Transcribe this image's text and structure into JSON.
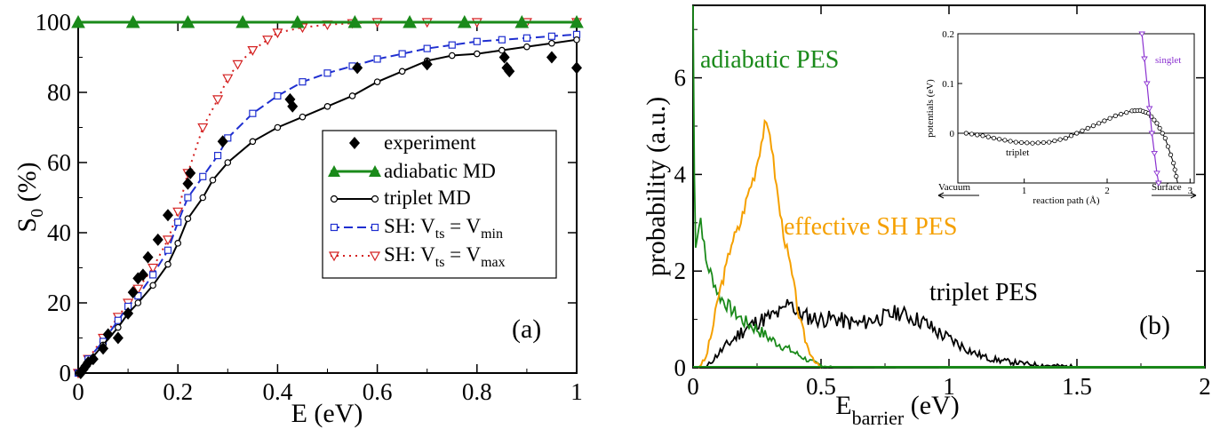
{
  "colors": {
    "experiment": "#000000",
    "adiabatic": "#1a8a1a",
    "triplet": "#000000",
    "sh_min": "#1f2fd0",
    "sh_max": "#d42020",
    "effective": "#f5a000",
    "singlet": "#8a30d0"
  },
  "panel_a": {
    "label": "(a)",
    "xlabel": "E (eV)",
    "ylabel_main": "S",
    "ylabel_sub": "0",
    "ylabel_tail": " (%)",
    "xticks": [
      "0",
      "0.2",
      "0.4",
      "0.6",
      "0.8",
      "1"
    ],
    "yticks": [
      "0",
      "20",
      "40",
      "60",
      "80",
      "100"
    ],
    "legend": {
      "experiment": "experiment",
      "adiabatic": "adiabatic MD",
      "triplet": "triplet MD",
      "sh_min": {
        "a": "SH: V",
        "b": "ts",
        "c": " = V",
        "d": "min"
      },
      "sh_max": {
        "a": "SH: V",
        "b": "ts",
        "c": " = V",
        "d": "max"
      }
    }
  },
  "panel_b": {
    "label": "(b)",
    "xlabel_main": "E",
    "xlabel_sub": "barrier",
    "xlabel_tail": " (eV)",
    "ylabel": "probability (a.u.)",
    "xticks": [
      "0",
      "0.5",
      "1",
      "1.5",
      "2"
    ],
    "yticks": [
      "0",
      "2",
      "4",
      "6"
    ],
    "annotations": {
      "adiabatic": "adiabatic PES",
      "effective": "effective SH PES",
      "triplet": "triplet PES"
    },
    "inset": {
      "ylabel": "potentials (eV)",
      "xlabel": "reaction path (Å)",
      "yticks": [
        "0",
        "0.1",
        "0.2"
      ],
      "xticks": [
        "1",
        "2",
        "3"
      ],
      "vacuum": "Vacuum",
      "surface": "Surface",
      "triplet_label": "triplet",
      "singlet_label": "singlet"
    }
  },
  "chart_data": [
    {
      "type": "scatter",
      "panel": "a",
      "xlabel": "E (eV)",
      "ylabel": "S0 (%)",
      "xlim": [
        0,
        1
      ],
      "ylim": [
        0,
        100
      ],
      "legend_position": "center-right",
      "series": [
        {
          "name": "experiment",
          "style": "diamond markers",
          "x": [
            0.005,
            0.01,
            0.015,
            0.02,
            0.03,
            0.05,
            0.06,
            0.08,
            0.1,
            0.11,
            0.12,
            0.13,
            0.14,
            0.16,
            0.18,
            0.22,
            0.225,
            0.29,
            0.425,
            0.43,
            0.56,
            0.7,
            0.855,
            0.86,
            0.865,
            0.95,
            1.0
          ],
          "y": [
            0,
            1,
            2,
            3,
            4,
            7,
            11,
            10,
            17,
            23,
            27,
            28,
            33,
            38,
            45,
            54,
            57,
            66,
            78,
            76,
            87,
            88,
            90,
            87,
            86,
            90,
            87
          ]
        },
        {
          "name": "adiabatic MD",
          "style": "line with triangle markers",
          "x": [
            0,
            0.11,
            0.22,
            0.33,
            0.44,
            0.555,
            0.665,
            0.775,
            0.89,
            1.0
          ],
          "y": [
            100,
            100,
            100,
            100,
            100,
            100,
            100,
            100,
            100,
            100
          ]
        },
        {
          "name": "triplet MD",
          "style": "line with circle markers",
          "x": [
            0,
            0.02,
            0.05,
            0.08,
            0.1,
            0.12,
            0.15,
            0.18,
            0.2,
            0.22,
            0.25,
            0.27,
            0.3,
            0.35,
            0.4,
            0.45,
            0.5,
            0.55,
            0.6,
            0.65,
            0.7,
            0.75,
            0.8,
            0.85,
            0.9,
            0.95,
            1.0
          ],
          "y": [
            0,
            3,
            8,
            13,
            17,
            20,
            25,
            31,
            37,
            44,
            50,
            55,
            60,
            66,
            70,
            73,
            76,
            79,
            83,
            86,
            89,
            90.5,
            91,
            92,
            93,
            94,
            95
          ]
        },
        {
          "name": "SH: V_ts = V_min",
          "style": "dashed line with square markers",
          "x": [
            0,
            0.02,
            0.05,
            0.08,
            0.1,
            0.12,
            0.15,
            0.18,
            0.2,
            0.22,
            0.25,
            0.28,
            0.3,
            0.35,
            0.4,
            0.45,
            0.5,
            0.55,
            0.6,
            0.65,
            0.7,
            0.75,
            0.8,
            0.85,
            0.9,
            0.95,
            1.0
          ],
          "y": [
            0,
            4,
            9,
            15,
            19,
            22,
            28,
            35,
            43,
            50,
            56,
            62,
            67,
            74,
            79,
            83,
            85.5,
            87.5,
            89.5,
            91,
            92.5,
            93.5,
            94.5,
            95,
            95.5,
            96,
            96.5
          ]
        },
        {
          "name": "SH: V_ts = V_max",
          "style": "dotted line with inverted triangle markers",
          "x": [
            0,
            0.02,
            0.05,
            0.08,
            0.1,
            0.12,
            0.15,
            0.18,
            0.2,
            0.22,
            0.25,
            0.28,
            0.3,
            0.32,
            0.35,
            0.38,
            0.4,
            0.45,
            0.5,
            0.55,
            0.6,
            0.7,
            0.8,
            0.9,
            1.0
          ],
          "y": [
            0,
            4,
            10,
            16,
            20,
            24,
            30,
            38,
            46,
            57,
            70,
            78,
            84,
            88,
            92,
            95,
            97,
            98.5,
            99.3,
            99.7,
            100,
            100,
            100,
            100,
            100
          ]
        }
      ]
    },
    {
      "type": "line",
      "panel": "b",
      "xlabel": "E_barrier (eV)",
      "ylabel": "probability (a.u.)",
      "xlim": [
        0,
        2
      ],
      "ylim": [
        0,
        7.5
      ],
      "series": [
        {
          "name": "adiabatic PES",
          "x": [
            0,
            0.005,
            0.01,
            0.03,
            0.05,
            0.08,
            0.1,
            0.15,
            0.2,
            0.25,
            0.3,
            0.35,
            0.4,
            0.45,
            0.5,
            0.55,
            1.0,
            2.0
          ],
          "y": [
            7.5,
            4.0,
            2.6,
            3.1,
            2.2,
            1.8,
            1.5,
            1.2,
            0.95,
            0.8,
            0.6,
            0.45,
            0.3,
            0.15,
            0.05,
            0.01,
            0,
            0
          ]
        },
        {
          "name": "effective SH PES",
          "x": [
            0.02,
            0.05,
            0.08,
            0.1,
            0.13,
            0.15,
            0.18,
            0.2,
            0.22,
            0.24,
            0.26,
            0.28,
            0.3,
            0.32,
            0.34,
            0.36,
            0.38,
            0.4,
            0.42,
            0.45,
            0.48,
            0.5
          ],
          "y": [
            0,
            0.2,
            0.9,
            1.5,
            2.1,
            2.6,
            2.9,
            3.3,
            3.7,
            4.0,
            4.5,
            5.0,
            4.9,
            4.0,
            3.2,
            2.6,
            2.1,
            1.5,
            0.9,
            0.4,
            0.1,
            0
          ]
        },
        {
          "name": "triplet PES",
          "x": [
            0.05,
            0.1,
            0.15,
            0.2,
            0.25,
            0.3,
            0.35,
            0.38,
            0.4,
            0.45,
            0.5,
            0.55,
            0.6,
            0.65,
            0.7,
            0.75,
            0.8,
            0.85,
            0.9,
            0.95,
            1.0,
            1.05,
            1.1,
            1.15,
            1.2,
            1.3,
            1.4,
            1.5,
            1.6,
            1.8,
            2.0
          ],
          "y": [
            0,
            0.3,
            0.55,
            0.8,
            0.95,
            1.05,
            1.15,
            1.45,
            1.15,
            1.05,
            1.0,
            1.02,
            0.95,
            0.9,
            1.0,
            1.05,
            1.15,
            1.05,
            0.95,
            0.75,
            0.6,
            0.45,
            0.3,
            0.2,
            0.15,
            0.08,
            0.04,
            0.02,
            0.01,
            0,
            0
          ]
        }
      ]
    },
    {
      "type": "line",
      "panel": "b-inset",
      "xlabel": "reaction path (Å)",
      "ylabel": "potentials (eV)",
      "ylim": [
        -0.1,
        0.2
      ],
      "series": [
        {
          "name": "triplet",
          "x": [
            0.3,
            0.5,
            0.7,
            0.9,
            1.1,
            1.3,
            1.5,
            1.7,
            1.9,
            2.1,
            2.3,
            2.4,
            2.5,
            2.6,
            2.7,
            2.8,
            2.85
          ],
          "y": [
            0,
            -0.005,
            -0.012,
            -0.018,
            -0.02,
            -0.018,
            -0.01,
            0.005,
            0.02,
            0.035,
            0.045,
            0.046,
            0.04,
            0.02,
            -0.01,
            -0.06,
            -0.1
          ]
        },
        {
          "name": "singlet",
          "x": [
            2.42,
            2.45,
            2.48,
            2.51,
            2.54,
            2.57,
            2.6,
            2.62
          ],
          "y": [
            0.2,
            0.15,
            0.1,
            0.05,
            0.0,
            -0.04,
            -0.08,
            -0.1
          ]
        }
      ]
    }
  ]
}
